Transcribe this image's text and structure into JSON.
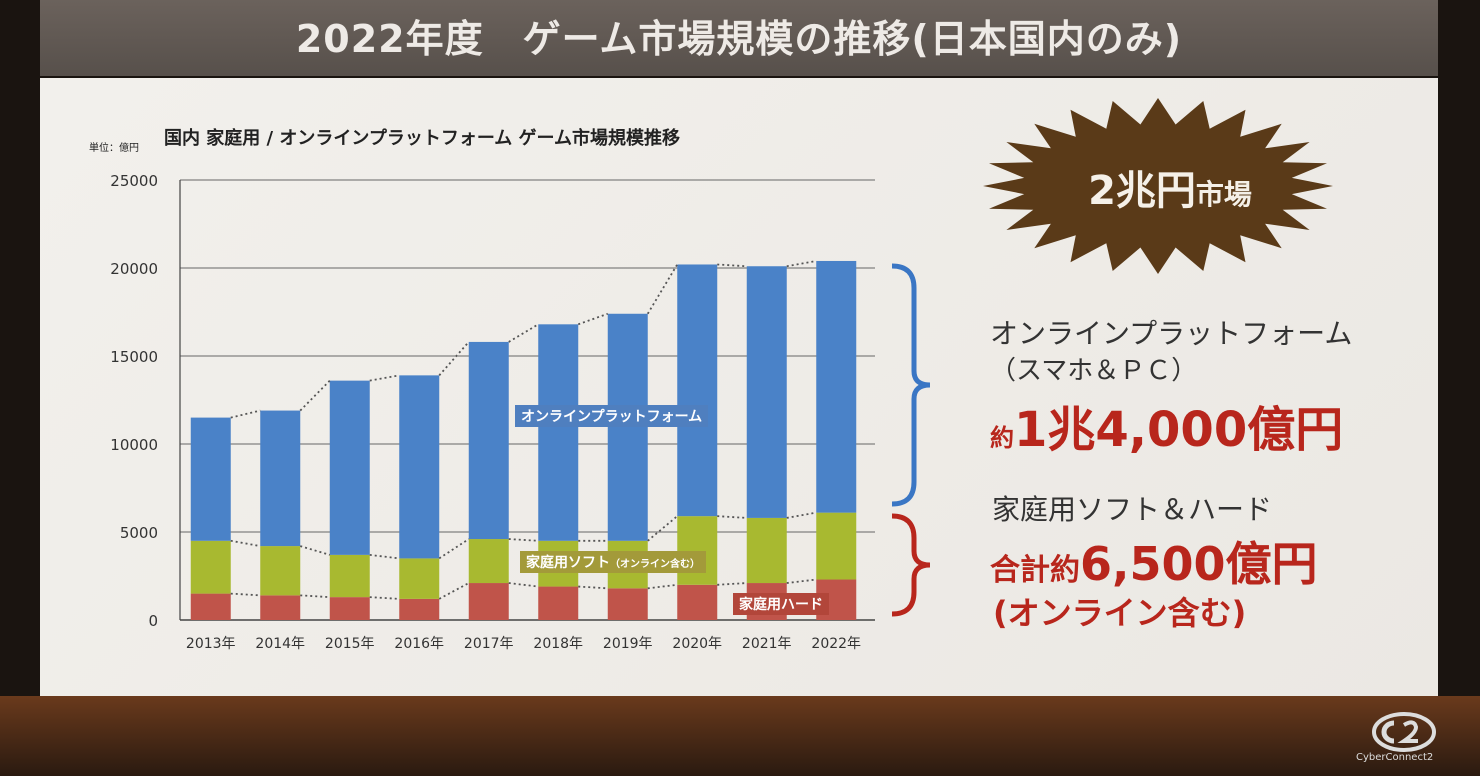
{
  "slide_title": "2022年度　ゲーム市場規模の推移(日本国内のみ)",
  "burst": {
    "big": "2兆円",
    "small": "市場"
  },
  "right_panel": {
    "online_heading": "オンラインプラットフォーム",
    "online_sub": "（スマホ＆ＰＣ）",
    "online_amount_prefix": "約",
    "online_amount": "1兆4,000億円",
    "home_heading": "家庭用ソフト＆ハード",
    "home_amount_prefix": "合計約",
    "home_amount": "6,500億円",
    "home_amount_note": "(オンライン含む)"
  },
  "footer": {
    "logo_text": "CyberConnect2"
  },
  "chart_data": {
    "type": "bar",
    "stacked": true,
    "title": "国内 家庭用 / オンラインプラットフォーム ゲーム市場規模推移",
    "unit_label": "単位：億円",
    "categories": [
      "2013年",
      "2014年",
      "2015年",
      "2016年",
      "2017年",
      "2018年",
      "2019年",
      "2020年",
      "2021年",
      "2022年"
    ],
    "ylim": [
      0,
      25000
    ],
    "yticks": [
      "0",
      "5000",
      "10000",
      "15000",
      "20000",
      "25000"
    ],
    "grid": true,
    "series": [
      {
        "name": "家庭用ハード",
        "label_text": "家庭用ハード",
        "color": "#c0544a",
        "values": [
          1500,
          1400,
          1300,
          1200,
          2100,
          1900,
          1800,
          2000,
          2100,
          2300
        ]
      },
      {
        "name": "家庭用ソフト（オンライン含む）",
        "label_text": "家庭用ソフト",
        "label_small": "（オンライン含む）",
        "color": "#a8b930",
        "values": [
          3000,
          2800,
          2400,
          2300,
          2500,
          2600,
          2700,
          3900,
          3700,
          3800
        ]
      },
      {
        "name": "オンラインプラットフォーム",
        "label_text": "オンラインプラットフォーム",
        "color": "#4a82c8",
        "values": [
          7000,
          7700,
          9900,
          10400,
          11200,
          12300,
          12900,
          14300,
          14300,
          14300
        ]
      }
    ]
  }
}
